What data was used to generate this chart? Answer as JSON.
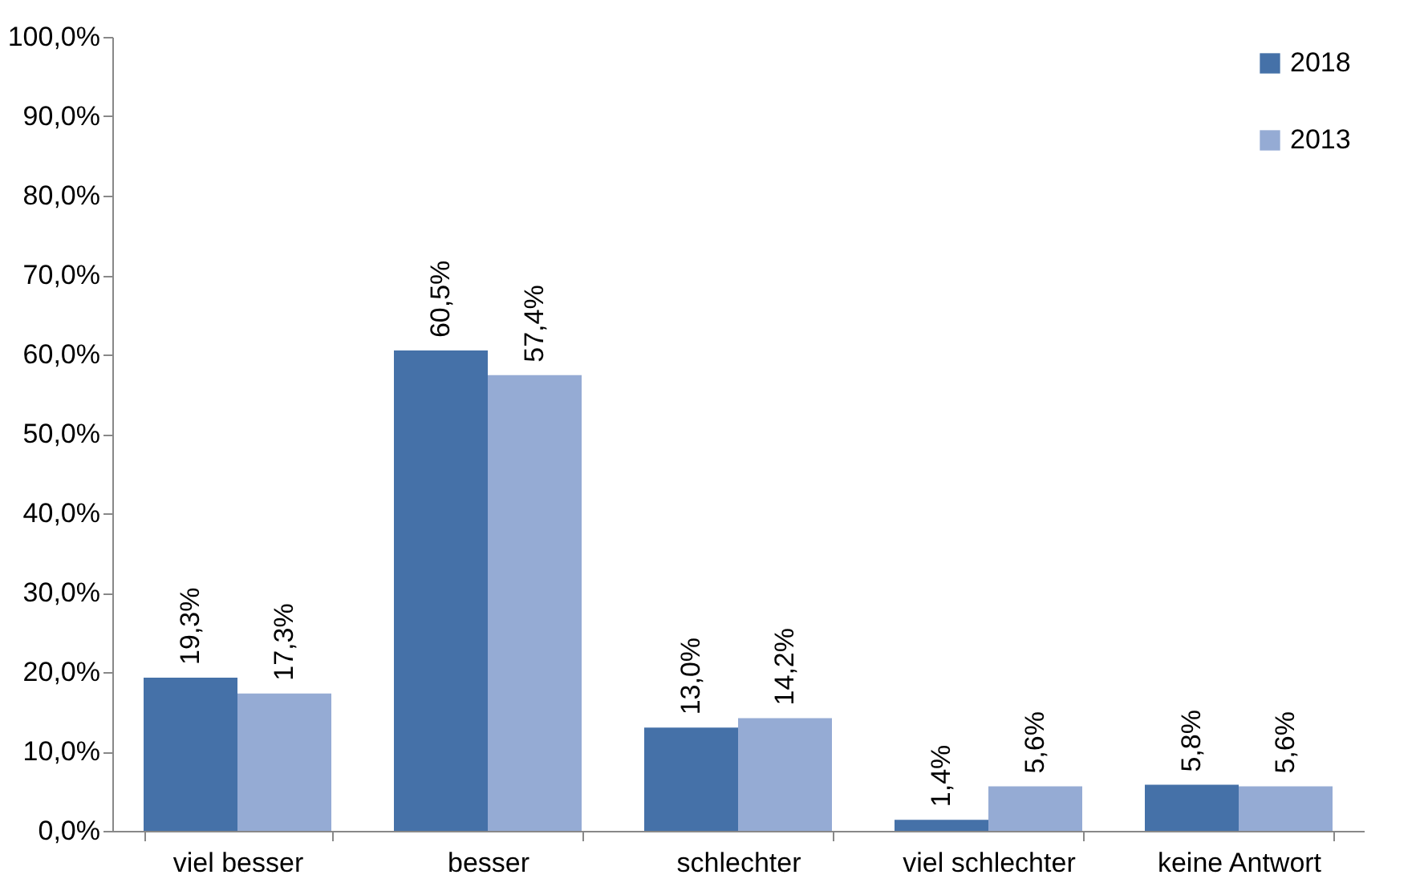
{
  "chart_data": {
    "type": "bar",
    "categories": [
      "viel besser",
      "besser",
      "schlechter",
      "viel schlechter",
      "keine Antwort"
    ],
    "series": [
      {
        "name": "2018",
        "color": "#4571a8",
        "values": [
          19.3,
          60.5,
          13.0,
          1.4,
          5.8
        ],
        "value_labels": [
          "19,3%",
          "60,5%",
          "13,0%",
          "1,4%",
          "5,8%"
        ]
      },
      {
        "name": "2013",
        "color": "#95abd4",
        "values": [
          17.3,
          57.4,
          14.2,
          5.6,
          5.6
        ],
        "value_labels": [
          "17,3%",
          "57,4%",
          "14,2%",
          "5,6%",
          "5,6%"
        ]
      }
    ],
    "ylim": [
      0,
      100
    ],
    "yticks": [
      {
        "value": 0,
        "label": "0,0%"
      },
      {
        "value": 10,
        "label": "10,0%"
      },
      {
        "value": 20,
        "label": "20,0%"
      },
      {
        "value": 30,
        "label": "30,0%"
      },
      {
        "value": 40,
        "label": "40,0%"
      },
      {
        "value": 50,
        "label": "50,0%"
      },
      {
        "value": 60,
        "label": "60,0%"
      },
      {
        "value": 70,
        "label": "70,0%"
      },
      {
        "value": 80,
        "label": "80,0%"
      },
      {
        "value": 90,
        "label": "90,0%"
      },
      {
        "value": 100,
        "label": "100,0%"
      }
    ],
    "grid": false,
    "legend": "top right"
  }
}
